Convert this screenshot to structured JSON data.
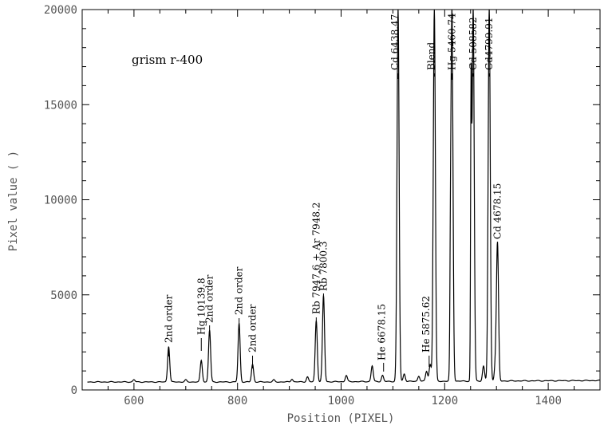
{
  "chart_data": {
    "type": "line",
    "inset_label": "grism  r-400",
    "xlabel": "Position (PIXEL)",
    "ylabel": "Pixel value ( )",
    "xlim": [
      500,
      1500
    ],
    "ylim": [
      0,
      20000
    ],
    "x_ticks": [
      600,
      800,
      1000,
      1200,
      1400
    ],
    "y_ticks": [
      0,
      5000,
      10000,
      15000,
      20000
    ],
    "baseline": 420,
    "peaks": [
      {
        "x": 600,
        "y": 540,
        "w": 2
      },
      {
        "x": 667,
        "y": 2300,
        "w": 2
      },
      {
        "x": 700,
        "y": 520,
        "w": 2
      },
      {
        "x": 730,
        "y": 1550,
        "w": 2
      },
      {
        "x": 746,
        "y": 3150,
        "w": 2
      },
      {
        "x": 803,
        "y": 3500,
        "w": 2
      },
      {
        "x": 829,
        "y": 1350,
        "w": 2
      },
      {
        "x": 870,
        "y": 520,
        "w": 2
      },
      {
        "x": 905,
        "y": 570,
        "w": 2
      },
      {
        "x": 935,
        "y": 680,
        "w": 2
      },
      {
        "x": 952,
        "y": 3650,
        "w": 2
      },
      {
        "x": 966,
        "y": 4950,
        "w": 2
      },
      {
        "x": 1010,
        "y": 750,
        "w": 2
      },
      {
        "x": 1060,
        "y": 1250,
        "w": 2
      },
      {
        "x": 1080,
        "y": 740,
        "w": 2
      },
      {
        "x": 1110,
        "y": 20000,
        "w": 2
      },
      {
        "x": 1122,
        "y": 820,
        "w": 2
      },
      {
        "x": 1150,
        "y": 700,
        "w": 2
      },
      {
        "x": 1165,
        "y": 950,
        "w": 2
      },
      {
        "x": 1172,
        "y": 1300,
        "w": 2
      },
      {
        "x": 1180,
        "y": 20000,
        "w": 2
      },
      {
        "x": 1211,
        "y": 3800,
        "w": 1
      },
      {
        "x": 1214,
        "y": 20000,
        "w": 2
      },
      {
        "x": 1251,
        "y": 14500,
        "w": 1
      },
      {
        "x": 1255,
        "y": 20000,
        "w": 2
      },
      {
        "x": 1275,
        "y": 1200,
        "w": 2
      },
      {
        "x": 1286,
        "y": 20000,
        "w": 2
      },
      {
        "x": 1298,
        "y": 1300,
        "w": 2
      },
      {
        "x": 1302,
        "y": 7600,
        "w": 2
      }
    ],
    "annotations": [
      {
        "text": "2nd order",
        "x": 667
      },
      {
        "text": "Hg 10139.8",
        "x": 730
      },
      {
        "text": "2nd order",
        "x": 746
      },
      {
        "text": "2nd order",
        "x": 803
      },
      {
        "text": "2nd order",
        "x": 829
      },
      {
        "text": "Rb 7947.6  + Ar 7948.2",
        "x": 952
      },
      {
        "text": "Rb 7800.3",
        "x": 966
      },
      {
        "text": "He 6678.15",
        "x": 1082
      },
      {
        "text": "Cd 6438.47",
        "x": 1110
      },
      {
        "text": "He 5875.62",
        "x": 1170
      },
      {
        "text": "Blend",
        "x": 1180
      },
      {
        "text": "Hg 5460.74",
        "x": 1214
      },
      {
        "text": "Cd 508582",
        "x": 1255
      },
      {
        "text": "Cd4799.91",
        "x": 1286
      },
      {
        "text": "Cd 4678.15",
        "x": 1302
      }
    ]
  }
}
